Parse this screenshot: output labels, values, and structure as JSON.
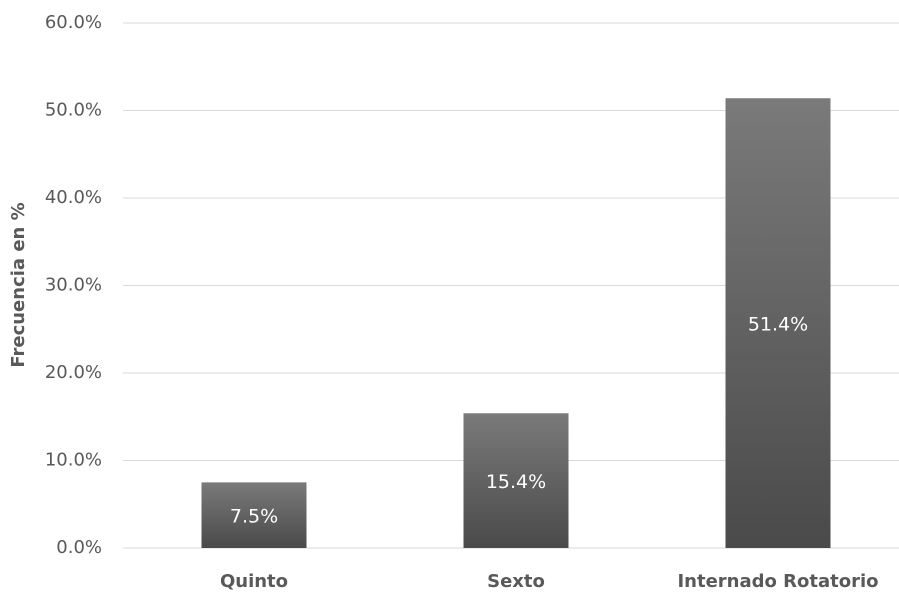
{
  "chart_data": {
    "type": "bar",
    "y_axis_label": "Frecuencia en %",
    "categories": [
      "Quinto",
      "Sexto",
      "Internado Rotatorio"
    ],
    "values": [
      7.5,
      15.4,
      51.4
    ],
    "value_labels": [
      "7.5%",
      "15.4%",
      "51.4%"
    ],
    "color": "#5f5f5f",
    "ylim": [
      0,
      60
    ],
    "yticks": [
      {
        "value": 0,
        "label": "0.0%"
      },
      {
        "value": 10,
        "label": "10.0%"
      },
      {
        "value": 20,
        "label": "20.0%"
      },
      {
        "value": 30,
        "label": "30.0%"
      },
      {
        "value": 40,
        "label": "40.0%"
      },
      {
        "value": 50,
        "label": "50.0%"
      },
      {
        "value": 60,
        "label": "60.0%"
      }
    ],
    "grid": true
  }
}
